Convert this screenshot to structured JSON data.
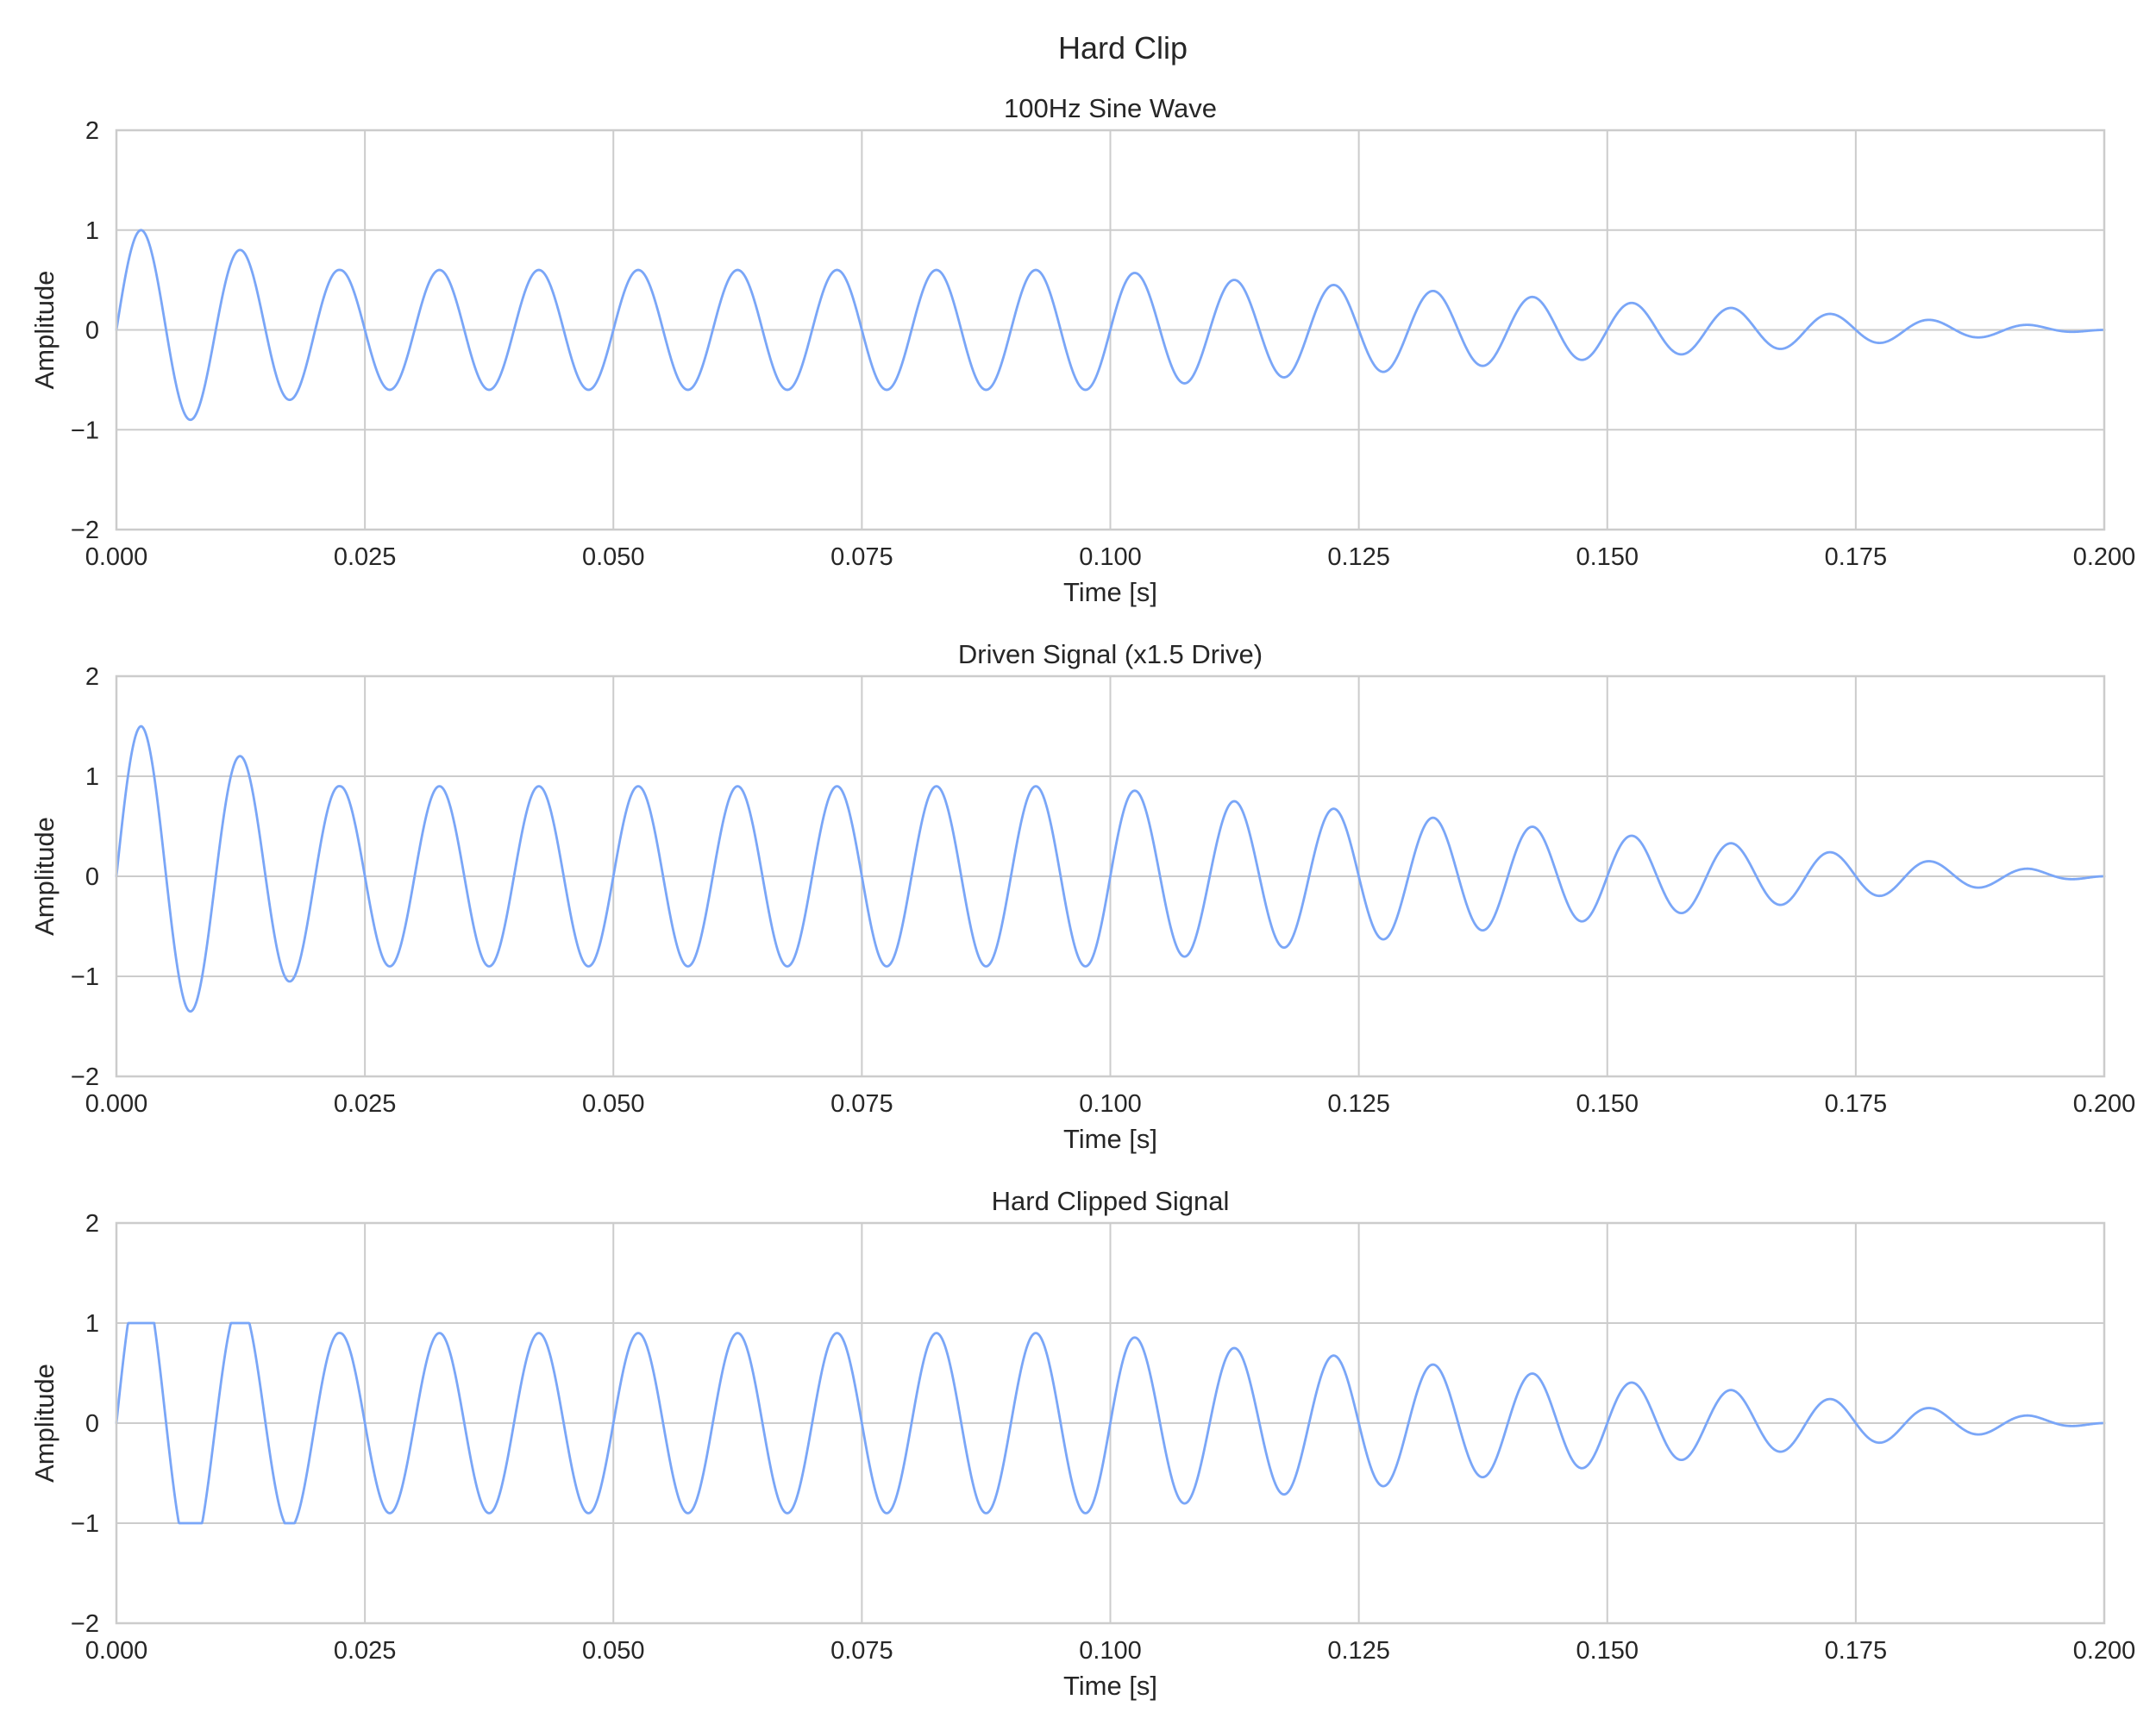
{
  "figure": {
    "title": "Hard Clip",
    "line_color": "#7aa6f7",
    "grid": true
  },
  "chart_data": [
    {
      "type": "line",
      "title": "100Hz Sine Wave",
      "xlabel": "Time [s]",
      "ylabel": "Amplitude",
      "xlim": [
        0.0,
        0.2
      ],
      "ylim": [
        -2,
        2
      ],
      "xticks": [
        0.0,
        0.025,
        0.05,
        0.075,
        0.1,
        0.125,
        0.15,
        0.175,
        0.2
      ],
      "xtick_labels": [
        "0.000",
        "0.025",
        "0.050",
        "0.075",
        "0.100",
        "0.125",
        "0.150",
        "0.175",
        "0.200"
      ],
      "yticks": [
        -2,
        -1,
        0,
        1,
        2
      ],
      "ytick_labels": [
        "−2",
        "−1",
        "0",
        "1",
        "2"
      ],
      "series": [
        {
          "frequency_hz": 100,
          "envelope_t": [
            0.0,
            0.0025,
            0.0075,
            0.0125,
            0.0175,
            0.0225,
            0.1,
            0.1025,
            0.1125,
            0.1225,
            0.1325,
            0.1425,
            0.1525,
            0.1625,
            0.1725,
            0.1825,
            0.1925,
            0.2
          ],
          "envelope": [
            1.0,
            1.0,
            0.9,
            0.8,
            0.7,
            0.6,
            0.6,
            0.57,
            0.5,
            0.45,
            0.39,
            0.33,
            0.27,
            0.22,
            0.16,
            0.1,
            0.05,
            0.0
          ],
          "clip": null
        }
      ]
    },
    {
      "type": "line",
      "title": "Driven Signal (x1.5 Drive)",
      "xlabel": "Time [s]",
      "ylabel": "Amplitude",
      "xlim": [
        0.0,
        0.2
      ],
      "ylim": [
        -2,
        2
      ],
      "xticks": [
        0.0,
        0.025,
        0.05,
        0.075,
        0.1,
        0.125,
        0.15,
        0.175,
        0.2
      ],
      "xtick_labels": [
        "0.000",
        "0.025",
        "0.050",
        "0.075",
        "0.100",
        "0.125",
        "0.150",
        "0.175",
        "0.200"
      ],
      "yticks": [
        -2,
        -1,
        0,
        1,
        2
      ],
      "ytick_labels": [
        "−2",
        "−1",
        "0",
        "1",
        "2"
      ],
      "series": [
        {
          "frequency_hz": 100,
          "envelope_t": [
            0.0,
            0.0025,
            0.0075,
            0.0125,
            0.0175,
            0.0225,
            0.1,
            0.1025,
            0.1125,
            0.1225,
            0.1325,
            0.1425,
            0.1525,
            0.1625,
            0.1725,
            0.1825,
            0.1925,
            0.2
          ],
          "envelope": [
            1.5,
            1.5,
            1.35,
            1.2,
            1.05,
            0.9,
            0.9,
            0.855,
            0.75,
            0.675,
            0.585,
            0.495,
            0.405,
            0.33,
            0.24,
            0.15,
            0.075,
            0.0
          ],
          "clip": null
        }
      ]
    },
    {
      "type": "line",
      "title": "Hard Clipped Signal",
      "xlabel": "Time [s]",
      "ylabel": "Amplitude",
      "xlim": [
        0.0,
        0.2
      ],
      "ylim": [
        -2,
        2
      ],
      "xticks": [
        0.0,
        0.025,
        0.05,
        0.075,
        0.1,
        0.125,
        0.15,
        0.175,
        0.2
      ],
      "xtick_labels": [
        "0.000",
        "0.025",
        "0.050",
        "0.075",
        "0.100",
        "0.125",
        "0.150",
        "0.175",
        "0.200"
      ],
      "yticks": [
        -2,
        -1,
        0,
        1,
        2
      ],
      "ytick_labels": [
        "−2",
        "−1",
        "0",
        "1",
        "2"
      ],
      "series": [
        {
          "frequency_hz": 100,
          "envelope_t": [
            0.0,
            0.0025,
            0.0075,
            0.0125,
            0.0175,
            0.0225,
            0.1,
            0.1025,
            0.1125,
            0.1225,
            0.1325,
            0.1425,
            0.1525,
            0.1625,
            0.1725,
            0.1825,
            0.1925,
            0.2
          ],
          "envelope": [
            1.5,
            1.5,
            1.35,
            1.2,
            1.05,
            0.9,
            0.9,
            0.855,
            0.75,
            0.675,
            0.585,
            0.495,
            0.405,
            0.33,
            0.24,
            0.15,
            0.075,
            0.0
          ],
          "clip": [
            -1,
            1
          ]
        }
      ]
    }
  ]
}
